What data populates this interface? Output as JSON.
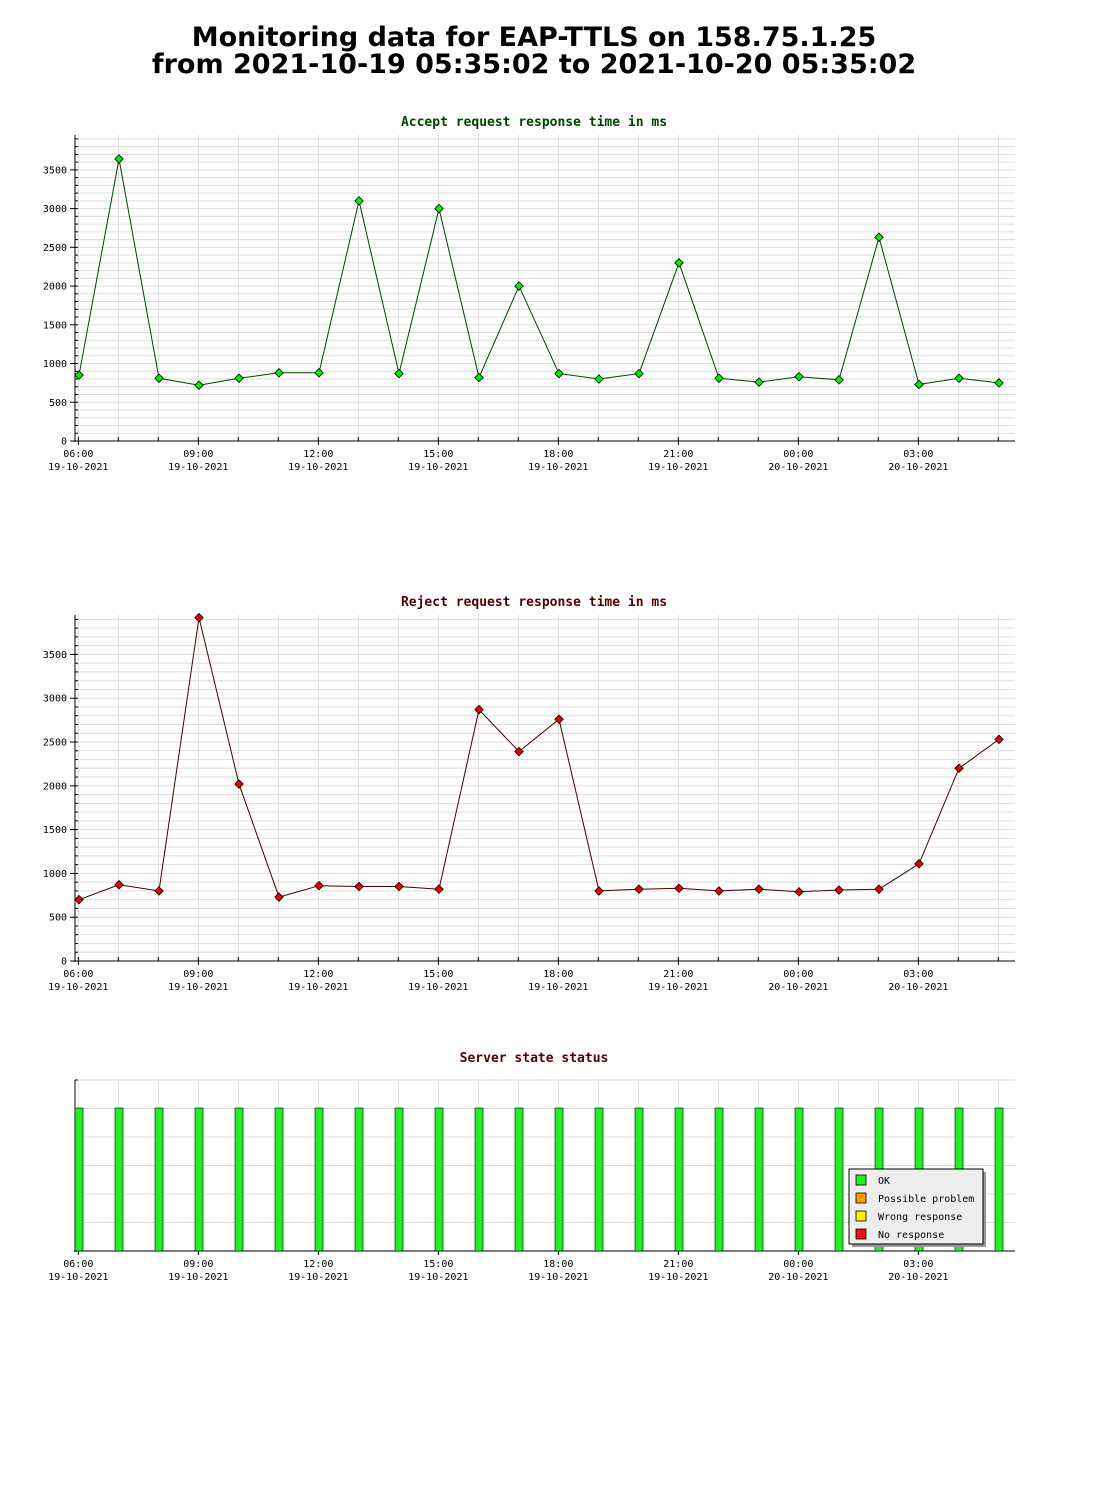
{
  "page": {
    "title_line1": "Monitoring data for EAP-TTLS on 158.75.1.25",
    "title_line2": "from 2021-10-19 05:35:02 to 2021-10-20 05:35:02"
  },
  "chart_data": [
    {
      "type": "line",
      "title": "Accept request response time in ms",
      "title_color": "#004400",
      "line_color": "#004400",
      "marker_color": "#00ee00",
      "grid": true,
      "ylim": [
        0,
        3950
      ],
      "yticks": [
        0,
        500,
        1000,
        1500,
        2000,
        2500,
        3000,
        3500
      ],
      "xlim": [
        "2021-10-19 05:55",
        "2021-10-20 05:25"
      ],
      "xticks": [
        {
          "time": "06:00",
          "date": "19-10-2021"
        },
        {
          "time": "09:00",
          "date": "19-10-2021"
        },
        {
          "time": "12:00",
          "date": "19-10-2021"
        },
        {
          "time": "15:00",
          "date": "19-10-2021"
        },
        {
          "time": "18:00",
          "date": "19-10-2021"
        },
        {
          "time": "21:00",
          "date": "19-10-2021"
        },
        {
          "time": "00:00",
          "date": "20-10-2021"
        },
        {
          "time": "03:00",
          "date": "20-10-2021"
        }
      ],
      "x": [
        "2021-10-19 06:01",
        "2021-10-19 07:01",
        "2021-10-19 08:01",
        "2021-10-19 09:01",
        "2021-10-19 10:01",
        "2021-10-19 11:01",
        "2021-10-19 12:01",
        "2021-10-19 13:01",
        "2021-10-19 14:01",
        "2021-10-19 15:01",
        "2021-10-19 16:01",
        "2021-10-19 17:01",
        "2021-10-19 18:01",
        "2021-10-19 19:01",
        "2021-10-19 20:01",
        "2021-10-19 21:01",
        "2021-10-19 22:01",
        "2021-10-19 23:01",
        "2021-10-20 00:01",
        "2021-10-20 01:01",
        "2021-10-20 02:01",
        "2021-10-20 03:01",
        "2021-10-20 04:01",
        "2021-10-20 05:01"
      ],
      "values": [
        850,
        3640,
        810,
        720,
        810,
        880,
        880,
        3100,
        870,
        3000,
        820,
        2000,
        870,
        800,
        870,
        2300,
        810,
        760,
        830,
        790,
        2630,
        730,
        810,
        750
      ]
    },
    {
      "type": "line",
      "title": "Reject request response time in ms",
      "title_color": "#550000",
      "line_color": "#440000",
      "marker_color": "#ee0000",
      "grid": true,
      "ylim": [
        0,
        3950
      ],
      "yticks": [
        0,
        500,
        1000,
        1500,
        2000,
        2500,
        3000,
        3500
      ],
      "xlim": [
        "2021-10-19 05:55",
        "2021-10-20 05:25"
      ],
      "xticks": [
        {
          "time": "06:00",
          "date": "19-10-2021"
        },
        {
          "time": "09:00",
          "date": "19-10-2021"
        },
        {
          "time": "12:00",
          "date": "19-10-2021"
        },
        {
          "time": "15:00",
          "date": "19-10-2021"
        },
        {
          "time": "18:00",
          "date": "19-10-2021"
        },
        {
          "time": "21:00",
          "date": "19-10-2021"
        },
        {
          "time": "00:00",
          "date": "20-10-2021"
        },
        {
          "time": "03:00",
          "date": "20-10-2021"
        }
      ],
      "x": [
        "2021-10-19 06:01",
        "2021-10-19 07:01",
        "2021-10-19 08:01",
        "2021-10-19 09:01",
        "2021-10-19 10:01",
        "2021-10-19 11:01",
        "2021-10-19 12:01",
        "2021-10-19 13:01",
        "2021-10-19 14:01",
        "2021-10-19 15:01",
        "2021-10-19 16:01",
        "2021-10-19 17:01",
        "2021-10-19 18:01",
        "2021-10-19 19:01",
        "2021-10-19 20:01",
        "2021-10-19 21:01",
        "2021-10-19 22:01",
        "2021-10-19 23:01",
        "2021-10-20 00:01",
        "2021-10-20 01:01",
        "2021-10-20 02:01",
        "2021-10-20 03:01",
        "2021-10-20 04:01",
        "2021-10-20 05:01"
      ],
      "values": [
        700,
        870,
        800,
        3920,
        2020,
        730,
        860,
        850,
        850,
        820,
        2870,
        2390,
        2760,
        800,
        820,
        830,
        800,
        820,
        790,
        810,
        820,
        1110,
        2200,
        2530
      ]
    },
    {
      "type": "bar",
      "title": "Server state status",
      "title_color": "#550000",
      "grid": true,
      "xlim": [
        "2021-10-19 05:55",
        "2021-10-20 05:25"
      ],
      "xticks": [
        {
          "time": "06:00",
          "date": "19-10-2021"
        },
        {
          "time": "09:00",
          "date": "19-10-2021"
        },
        {
          "time": "12:00",
          "date": "19-10-2021"
        },
        {
          "time": "15:00",
          "date": "19-10-2021"
        },
        {
          "time": "18:00",
          "date": "19-10-2021"
        },
        {
          "time": "21:00",
          "date": "19-10-2021"
        },
        {
          "time": "00:00",
          "date": "20-10-2021"
        },
        {
          "time": "03:00",
          "date": "20-10-2021"
        }
      ],
      "x": [
        "2021-10-19 06:01",
        "2021-10-19 07:01",
        "2021-10-19 08:01",
        "2021-10-19 09:01",
        "2021-10-19 10:01",
        "2021-10-19 11:01",
        "2021-10-19 12:01",
        "2021-10-19 13:01",
        "2021-10-19 14:01",
        "2021-10-19 15:01",
        "2021-10-19 16:01",
        "2021-10-19 17:01",
        "2021-10-19 18:01",
        "2021-10-19 19:01",
        "2021-10-19 20:01",
        "2021-10-19 21:01",
        "2021-10-19 22:01",
        "2021-10-19 23:01",
        "2021-10-20 00:01",
        "2021-10-20 01:01",
        "2021-10-20 02:01",
        "2021-10-20 03:01",
        "2021-10-20 04:01",
        "2021-10-20 05:01"
      ],
      "states": [
        "OK",
        "OK",
        "OK",
        "OK",
        "OK",
        "OK",
        "OK",
        "OK",
        "OK",
        "OK",
        "OK",
        "OK",
        "OK",
        "OK",
        "OK",
        "OK",
        "OK",
        "OK",
        "OK",
        "OK",
        "OK",
        "OK",
        "OK",
        "OK"
      ],
      "legend_placement": "bottom-right",
      "legend": [
        {
          "label": "OK",
          "color": "#22ee22"
        },
        {
          "label": "Possible problem",
          "color": "#ff9900"
        },
        {
          "label": "Wrong response",
          "color": "#ffee00"
        },
        {
          "label": "No response",
          "color": "#ee1111"
        }
      ]
    }
  ]
}
